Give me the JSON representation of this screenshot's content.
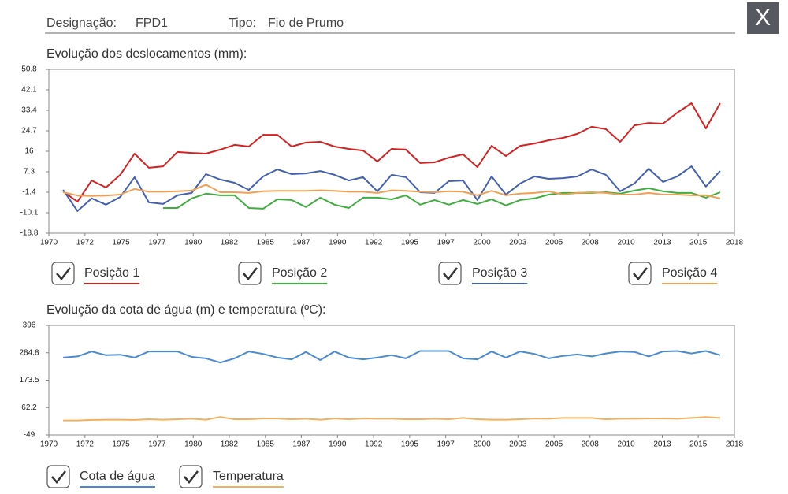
{
  "header": {
    "designation_label": "Designação:",
    "designation": "FPD1",
    "type_label": "Tipo:",
    "type": "Fio de Prumo"
  },
  "close_button": "X",
  "chart_data": [
    {
      "type": "line",
      "title": "Evolução dos deslocamentos (mm):",
      "x": [
        1971,
        1972,
        1973,
        1974,
        1975,
        1976,
        1977,
        1978,
        1979,
        1980,
        1981,
        1982,
        1983,
        1984,
        1985,
        1986,
        1987,
        1988,
        1989,
        1990,
        1991,
        1992,
        1993,
        1994,
        1995,
        1996,
        1997,
        1998,
        1999,
        2000,
        2001,
        2002,
        2003,
        2004,
        2005,
        2006,
        2007,
        2008,
        2009,
        2010,
        2011,
        2012,
        2013,
        2014,
        2015,
        2016,
        2017
      ],
      "xlim": [
        1970,
        2018
      ],
      "xticks": [
        {
          "value": 1970,
          "label": "1970"
        },
        {
          "value": 1972.53,
          "label": "1972"
        },
        {
          "value": 1975.05,
          "label": "1975"
        },
        {
          "value": 1977.58,
          "label": "1977"
        },
        {
          "value": 1980.11,
          "label": "1980"
        },
        {
          "value": 1982.63,
          "label": "1982"
        },
        {
          "value": 1985.16,
          "label": "1985"
        },
        {
          "value": 1987.68,
          "label": "1987"
        },
        {
          "value": 1990.21,
          "label": "1990"
        },
        {
          "value": 1992.74,
          "label": "1992"
        },
        {
          "value": 1995.26,
          "label": "1995"
        },
        {
          "value": 1997.79,
          "label": "1997"
        },
        {
          "value": 2000.32,
          "label": "2000"
        },
        {
          "value": 2002.84,
          "label": "2003"
        },
        {
          "value": 2005.37,
          "label": "2005"
        },
        {
          "value": 2007.89,
          "label": "2008"
        },
        {
          "value": 2010.42,
          "label": "2010"
        },
        {
          "value": 2012.95,
          "label": "2013"
        },
        {
          "value": 2015.47,
          "label": "2015"
        },
        {
          "value": 2018,
          "label": "2018"
        }
      ],
      "ylim": [
        -18.8,
        50.8
      ],
      "yticks": [
        -18.8,
        -10.1,
        -1.4,
        7.3,
        16,
        24.7,
        33.4,
        42.1,
        50.8
      ],
      "series": [
        {
          "name": "Posição 1",
          "color": "#d42222",
          "values": [
            -1.1,
            -5.4,
            3.6,
            0.6,
            6,
            15,
            9,
            9.6,
            15.7,
            15.3,
            15,
            16.7,
            18.7,
            18,
            23,
            23,
            18,
            19.7,
            20,
            18,
            17,
            16.3,
            11.7,
            17,
            16.7,
            11,
            11.3,
            13.3,
            14.7,
            9.3,
            18.3,
            14,
            18.3,
            19.3,
            20.7,
            21.7,
            23.4,
            26.4,
            25.4,
            20,
            27,
            28,
            27.7,
            32.4,
            36.4,
            25.7,
            36.4
          ]
        },
        {
          "name": "Posição 2",
          "color": "#3fae3f",
          "values": [
            null,
            null,
            null,
            null,
            null,
            null,
            null,
            -8.1,
            -8.1,
            -4,
            -2,
            -2.7,
            -2.7,
            -8.1,
            -8.4,
            -4.4,
            -4.7,
            -7.7,
            -3.7,
            -6.7,
            -8.1,
            -3.7,
            -3.7,
            -4.4,
            -2.7,
            -6.7,
            -4.7,
            -6.7,
            -4.7,
            -6.4,
            -4.4,
            -7,
            -4.7,
            -4,
            -2.4,
            -1.7,
            -1.7,
            -1.7,
            -1.4,
            -2,
            -0.7,
            0.3,
            -1,
            -1.7,
            -1.7,
            -3.7,
            -1.4
          ]
        },
        {
          "name": "Posição 3",
          "color": "#4460b0",
          "values": [
            -0.4,
            -9.4,
            -4,
            -6.7,
            -3.4,
            5,
            -5.7,
            -6.4,
            -2.7,
            -1.7,
            6.3,
            4,
            2.6,
            -0.4,
            5.3,
            8.3,
            6.3,
            6.6,
            7.6,
            6,
            3.6,
            5,
            -1,
            6,
            5,
            -1.4,
            -1.7,
            3.3,
            3.6,
            -4.7,
            5.3,
            -2.4,
            2.3,
            5.3,
            4.3,
            4.6,
            5.3,
            8.3,
            6,
            -1,
            2.3,
            8.6,
            3,
            5.3,
            9.6,
            1,
            7.6
          ]
        },
        {
          "name": "Posição 4",
          "color": "#f0a052",
          "values": [
            -1.4,
            -2.8,
            -3,
            -2.8,
            -2.4,
            0,
            -1.2,
            -1.2,
            -1,
            -0.7,
            1.8,
            -1.4,
            -1.4,
            -1.7,
            -1,
            -0.8,
            -0.8,
            -0.8,
            -0.6,
            -0.8,
            -1.2,
            -1.2,
            -1.7,
            -0.6,
            -0.8,
            -1.2,
            -1.4,
            -1,
            -1.2,
            -2.7,
            -0.8,
            -2.7,
            -2,
            -1.7,
            -1,
            -2.4,
            -1.7,
            -1.4,
            -1.7,
            -2.4,
            -2.4,
            -1.7,
            -2.4,
            -2.4,
            -2.7,
            -2.7,
            -4
          ]
        }
      ]
    },
    {
      "type": "line",
      "title": "Evolução da cota de água (m) e temperatura (ºC):",
      "x": [
        1971,
        1972,
        1973,
        1974,
        1975,
        1976,
        1977,
        1978,
        1979,
        1980,
        1981,
        1982,
        1983,
        1984,
        1985,
        1986,
        1987,
        1988,
        1989,
        1990,
        1991,
        1992,
        1993,
        1994,
        1995,
        1996,
        1997,
        1998,
        1999,
        2000,
        2001,
        2002,
        2003,
        2004,
        2005,
        2006,
        2007,
        2008,
        2009,
        2010,
        2011,
        2012,
        2013,
        2014,
        2015,
        2016,
        2017
      ],
      "xlim": [
        1970,
        2018
      ],
      "xticks": [
        {
          "value": 1970,
          "label": "1970"
        },
        {
          "value": 1972.53,
          "label": "1972"
        },
        {
          "value": 1975.05,
          "label": "1975"
        },
        {
          "value": 1977.58,
          "label": "1977"
        },
        {
          "value": 1980.11,
          "label": "1980"
        },
        {
          "value": 1982.63,
          "label": "1982"
        },
        {
          "value": 1985.16,
          "label": "1985"
        },
        {
          "value": 1987.68,
          "label": "1987"
        },
        {
          "value": 1990.21,
          "label": "1990"
        },
        {
          "value": 1992.74,
          "label": "1992"
        },
        {
          "value": 1995.26,
          "label": "1995"
        },
        {
          "value": 1997.79,
          "label": "1997"
        },
        {
          "value": 2000.32,
          "label": "2000"
        },
        {
          "value": 2002.84,
          "label": "2003"
        },
        {
          "value": 2005.37,
          "label": "2005"
        },
        {
          "value": 2007.89,
          "label": "2008"
        },
        {
          "value": 2010.42,
          "label": "2010"
        },
        {
          "value": 2012.95,
          "label": "2013"
        },
        {
          "value": 2015.47,
          "label": "2015"
        },
        {
          "value": 2018,
          "label": "2018"
        }
      ],
      "ylim": [
        -49,
        396
      ],
      "yticks": [
        -49,
        62.2,
        173.5,
        284.8,
        396
      ],
      "series": [
        {
          "name": "Cota de água",
          "color": "#4a8ad0",
          "values": [
            265,
            270,
            290,
            275,
            277,
            265,
            290,
            290,
            290,
            268,
            262,
            245,
            262,
            290,
            280,
            265,
            258,
            288,
            255,
            290,
            265,
            258,
            265,
            275,
            262,
            292,
            292,
            292,
            262,
            258,
            290,
            265,
            290,
            280,
            262,
            272,
            278,
            270,
            282,
            290,
            288,
            270,
            290,
            292,
            282,
            292,
            275
          ]
        },
        {
          "name": "Temperatura",
          "color": "#f0b062",
          "values": [
            10,
            10,
            12,
            13,
            13,
            12,
            15,
            13,
            15,
            17,
            13,
            24,
            15,
            15,
            18,
            18,
            15,
            17,
            13,
            18,
            15,
            18,
            17,
            17,
            15,
            15,
            17,
            15,
            20,
            15,
            13,
            13,
            15,
            18,
            17,
            20,
            20,
            20,
            15,
            17,
            17,
            18,
            18,
            17,
            20,
            24,
            20
          ]
        }
      ]
    }
  ]
}
